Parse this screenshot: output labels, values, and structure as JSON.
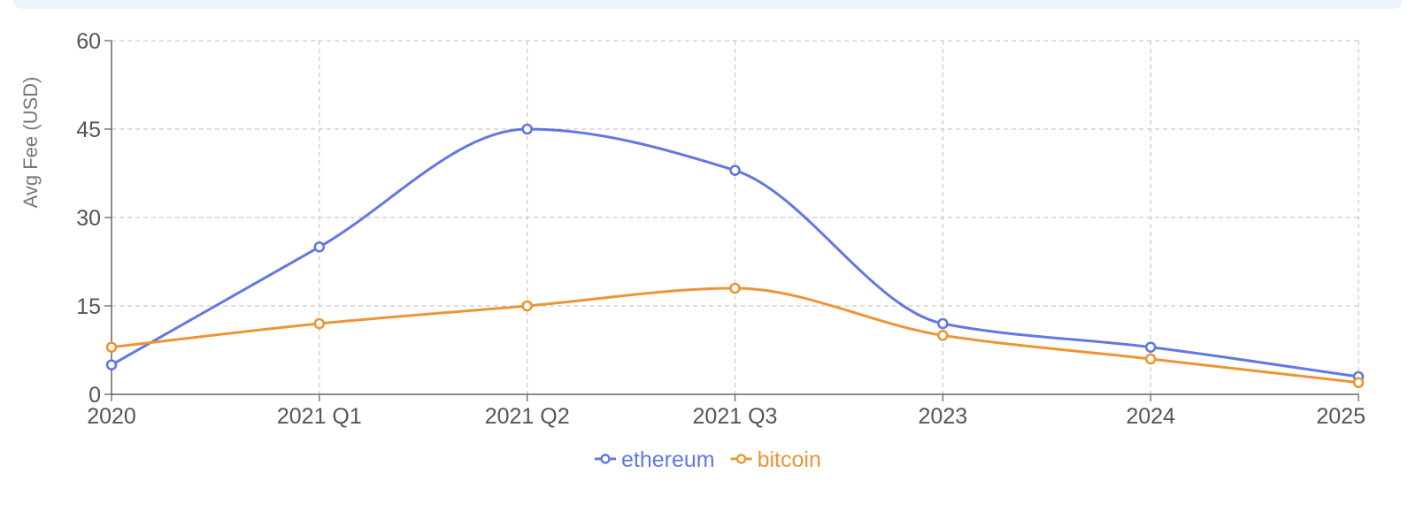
{
  "chart_data": {
    "type": "line",
    "title": "",
    "xlabel": "",
    "ylabel": "Avg Fee (USD)",
    "categories": [
      "2020",
      "2021 Q1",
      "2021 Q2",
      "2021 Q3",
      "2023",
      "2024",
      "2025"
    ],
    "ylim": [
      0,
      60
    ],
    "yticks": [
      0,
      15,
      30,
      45,
      60
    ],
    "grid": true,
    "legend_position": "bottom-center",
    "series": [
      {
        "name": "ethereum",
        "color": "#6378e0",
        "values": [
          5,
          25,
          45,
          38,
          12,
          8,
          3
        ]
      },
      {
        "name": "bitcoin",
        "color": "#ed9535",
        "values": [
          8,
          12,
          15,
          18,
          10,
          6,
          2
        ]
      }
    ]
  }
}
